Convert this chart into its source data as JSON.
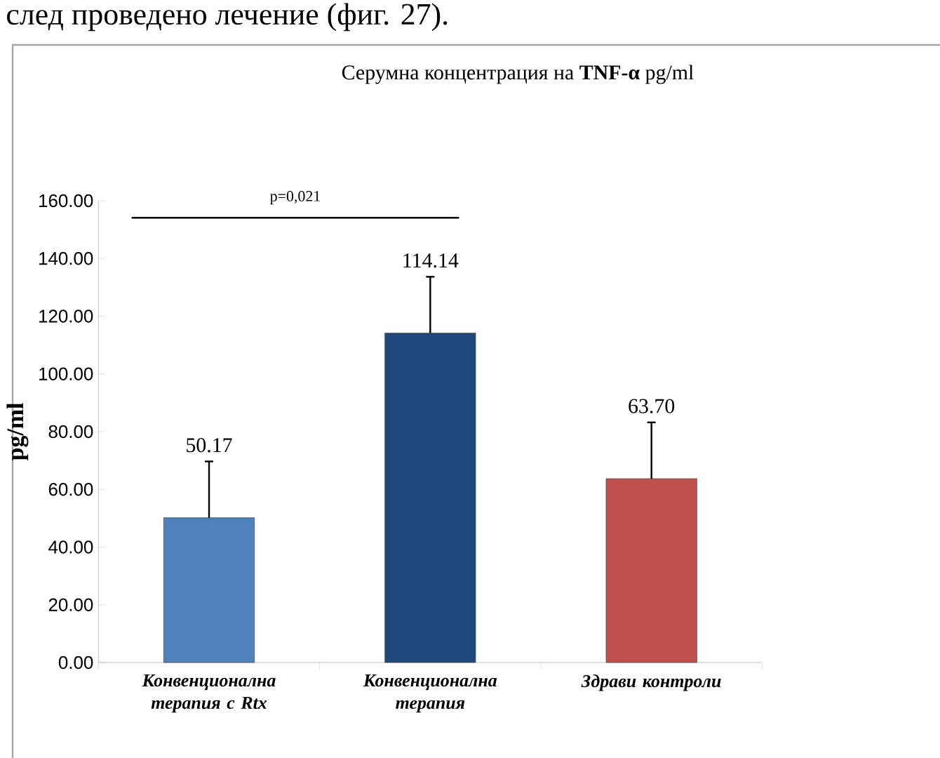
{
  "chart_data": {
    "type": "bar",
    "title": "Серумна концентрация на **TNF-α** pg/ml",
    "ylabel": "pg/ml",
    "categories": [
      "Конвенционална терапия с Rtx",
      "Конвенционална терапия",
      "Здрави контроли"
    ],
    "values": [
      50.17,
      114.14,
      63.7
    ],
    "colors": [
      "#4f81bd",
      "#1f497d",
      "#c0504d"
    ],
    "errors": [
      19.5,
      19.5,
      19.5
    ],
    "value_labels": [
      "50.17",
      "114.14",
      "63.70"
    ],
    "ylim": [
      0,
      160
    ],
    "yticks": [
      {
        "value": 0,
        "label": "0.00"
      },
      {
        "value": 20,
        "label": "20.00"
      },
      {
        "value": 40,
        "label": "40.00"
      },
      {
        "value": 60,
        "label": "60.00"
      },
      {
        "value": 80,
        "label": "80.00"
      },
      {
        "value": 100,
        "label": "100.00"
      },
      {
        "value": 120,
        "label": "120.00"
      },
      {
        "value": 140,
        "label": "140.00"
      },
      {
        "value": 160,
        "label": "160.00"
      }
    ],
    "annotations": [
      "p=0,021",
      "след проведено лечение (фиг. 27)."
    ],
    "grid": false
  }
}
